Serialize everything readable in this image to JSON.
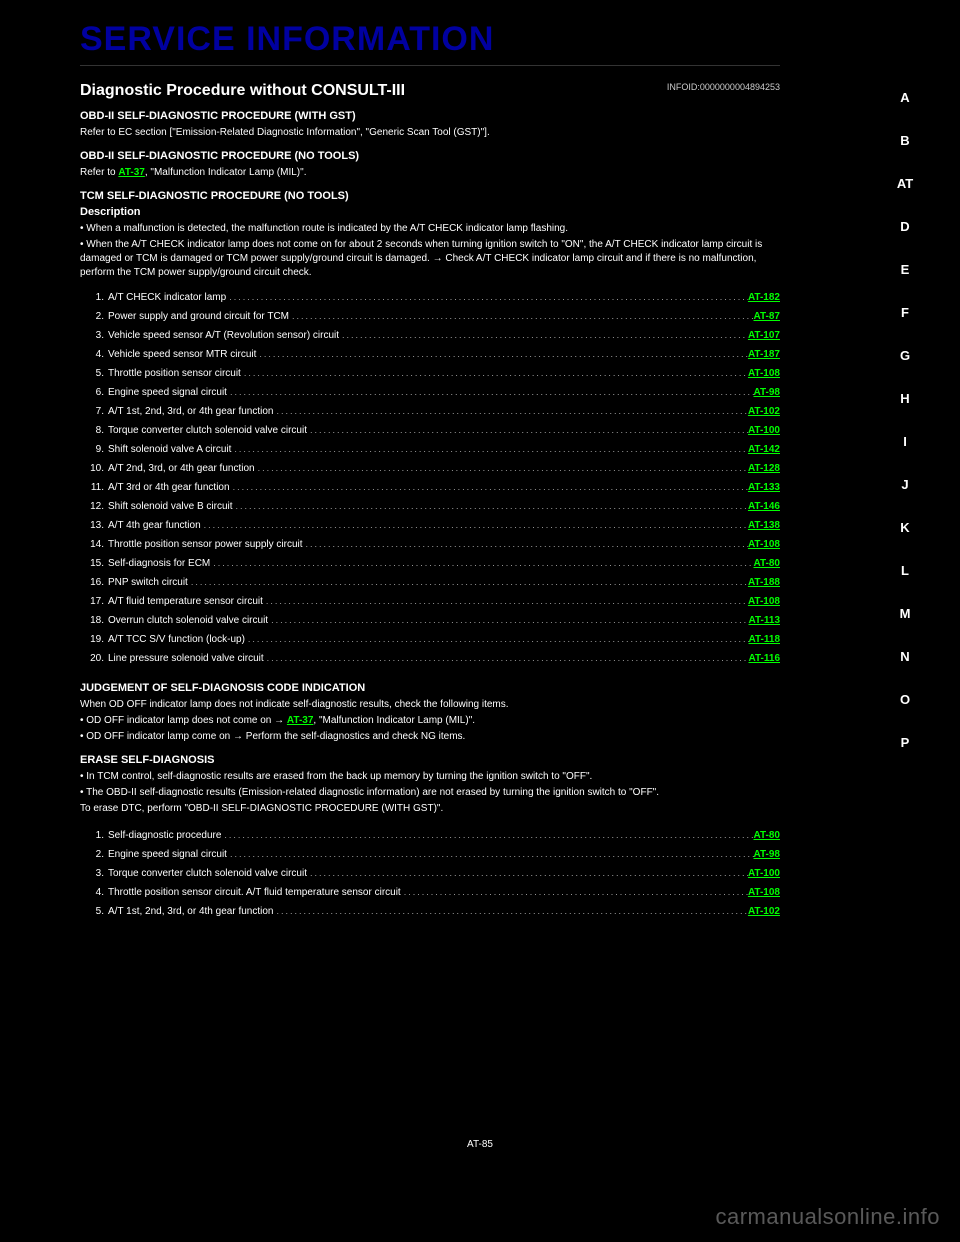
{
  "sideNav": {
    "items": [
      "A",
      "B",
      "AT",
      "D",
      "E",
      "F",
      "G",
      "H",
      "I",
      "J",
      "K",
      "L",
      "M",
      "N",
      "O",
      "P"
    ],
    "activeIndex": 2
  },
  "header": {
    "title": "SERVICE INFORMATION",
    "subtitle": "Diagnostic Procedure without CONSULT-III",
    "subtitleId": "INFOID:0000000004894253"
  },
  "section1": {
    "heading": "OBD-II SELF-DIAGNOSTIC PROCEDURE (WITH GST)",
    "body": "Refer to EC section [\"Emission-Related Diagnostic Information\", \"Generic Scan Tool (GST)\"].",
    "heading2": "OBD-II SELF-DIAGNOSTIC PROCEDURE (NO TOOLS)",
    "body2_pre": "Refer to ",
    "body2_link": "AT-37",
    "body2_post": ", \"Malfunction Indicator Lamp (MIL)\".",
    "heading3": "TCM SELF-DIAGNOSTIC PROCEDURE (NO TOOLS)",
    "desc_label": "Description",
    "bullets": [
      "When a malfunction is detected, the malfunction route is indicated by the A/T CHECK indicator lamp flashing.",
      "When the A/T CHECK indicator lamp does not come on for about 2 seconds when turning ignition switch to \"ON\", the A/T CHECK indicator lamp circuit is damaged or TCM is damaged or TCM power supply/ground circuit is damaged. → Check A/T CHECK indicator lamp circuit and if there is no malfunction, perform the TCM power supply/ground circuit check."
    ]
  },
  "diagTable1": {
    "rows": [
      {
        "num": "1.",
        "label": "A/T CHECK indicator lamp",
        "link": "AT-182"
      },
      {
        "num": "2.",
        "label": "Power supply and ground circuit for TCM",
        "link": "AT-87"
      },
      {
        "num": "3.",
        "label": "Vehicle speed sensor A/T (Revolution sensor) circuit",
        "link": "AT-107"
      },
      {
        "num": "4.",
        "label": "Vehicle speed sensor MTR circuit",
        "link": "AT-187"
      },
      {
        "num": "5.",
        "label": "Throttle position sensor circuit",
        "link": "AT-108"
      },
      {
        "num": "6.",
        "label": "Engine speed signal circuit",
        "link": "AT-98"
      },
      {
        "num": "7.",
        "label": "A/T 1st, 2nd, 3rd, or 4th gear function",
        "link": "AT-102"
      },
      {
        "num": "8.",
        "label": "Torque converter clutch solenoid valve circuit",
        "link": "AT-100"
      },
      {
        "num": "9.",
        "label": "Shift solenoid valve A circuit",
        "link": "AT-142"
      },
      {
        "num": "10.",
        "label": "A/T 2nd, 3rd, or 4th gear function",
        "link": "AT-128"
      },
      {
        "num": "11.",
        "label": "A/T 3rd or 4th gear function",
        "link": "AT-133"
      },
      {
        "num": "12.",
        "label": "Shift solenoid valve B circuit",
        "link": "AT-146"
      },
      {
        "num": "13.",
        "label": "A/T 4th gear function",
        "link": "AT-138"
      },
      {
        "num": "14.",
        "label": "Throttle position sensor power supply circuit",
        "link": "AT-108"
      },
      {
        "num": "15.",
        "label": "Self-diagnosis for ECM",
        "link": "AT-80"
      },
      {
        "num": "16.",
        "label": "PNP switch circuit",
        "link": "AT-188"
      },
      {
        "num": "17.",
        "label": "A/T fluid temperature sensor circuit",
        "link": "AT-108"
      },
      {
        "num": "18.",
        "label": "Overrun clutch solenoid valve circuit",
        "link": "AT-113"
      },
      {
        "num": "19.",
        "label": "A/T TCC S/V function (lock-up)",
        "link": "AT-118"
      },
      {
        "num": "20.",
        "label": "Line pressure solenoid valve circuit",
        "link": "AT-116"
      }
    ]
  },
  "section2": {
    "heading": "JUDGEMENT OF SELF-DIAGNOSIS CODE INDICATION",
    "body1": "When OD OFF indicator lamp does not indicate self-diagnostic results, check the following items.",
    "bullets": [
      {
        "pre": "OD OFF indicator lamp does not come on → ",
        "link": "AT-37",
        "post": ", \"Malfunction Indicator Lamp (MIL)\"."
      },
      {
        "pre": "OD OFF indicator lamp come on → ",
        "link": "",
        "post": "Perform the self-diagnostics and check NG items."
      }
    ],
    "heading2": "ERASE SELF-DIAGNOSIS",
    "bullets2": [
      "In TCM control, self-diagnostic results are erased from the back up memory by turning the ignition switch to \"OFF\".",
      "The OBD-II self-diagnostic results (Emission-related diagnostic information) are not erased by turning the ignition switch to \"OFF\"."
    ],
    "body2": "To erase DTC, perform \"OBD-II SELF-DIAGNOSTIC PROCEDURE (WITH GST)\"."
  },
  "diagTable2": {
    "rows": [
      {
        "num": "1.",
        "label": "Self-diagnostic procedure",
        "link": "AT-80"
      },
      {
        "num": "2.",
        "label": "Engine speed signal circuit",
        "link": "AT-98"
      },
      {
        "num": "3.",
        "label": "Torque converter clutch solenoid valve circuit",
        "link": "AT-100"
      },
      {
        "num": "4.",
        "label": "Throttle position sensor circuit. A/T fluid temperature sensor circuit",
        "link": "AT-108"
      },
      {
        "num": "5.",
        "label": "A/T 1st, 2nd, 3rd, or 4th gear function",
        "link": "AT-102"
      }
    ]
  },
  "pageNumber": "AT-85",
  "watermark": "carmanualsonline.info"
}
